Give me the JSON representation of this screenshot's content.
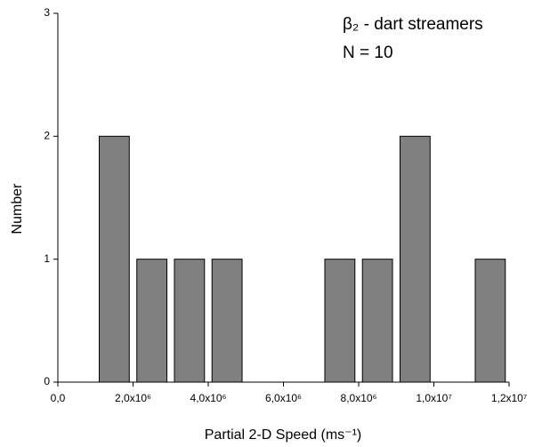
{
  "chart_data": {
    "type": "histogram",
    "annotations": [
      "β₂ - dart streamers",
      "N = 10"
    ],
    "x_label": "Partial 2-D Speed (ms⁻¹)",
    "y_label": "Number",
    "bins": [
      1000000,
      2000000,
      3000000,
      4000000,
      5000000,
      6000000,
      7000000,
      8000000,
      9000000,
      10000000,
      11000000,
      12000000
    ],
    "values": [
      2,
      1,
      1,
      1,
      0,
      0,
      1,
      1,
      2,
      0,
      1
    ],
    "color": "#808080",
    "xlim": [
      0,
      12000000
    ],
    "xticks": [
      {
        "value": 0,
        "label": "0,0"
      },
      {
        "value": 2000000,
        "label": "2,0x10⁶"
      },
      {
        "value": 4000000,
        "label": "4,0x10⁶"
      },
      {
        "value": 6000000,
        "label": "6,0x10⁶"
      },
      {
        "value": 8000000,
        "label": "8,0x10⁶"
      },
      {
        "value": 10000000,
        "label": "1,0x10⁷"
      },
      {
        "value": 12000000,
        "label": "1,2x10⁷"
      }
    ],
    "ylim": [
      0,
      3
    ],
    "yticks": [
      0,
      1,
      2,
      3
    ]
  }
}
